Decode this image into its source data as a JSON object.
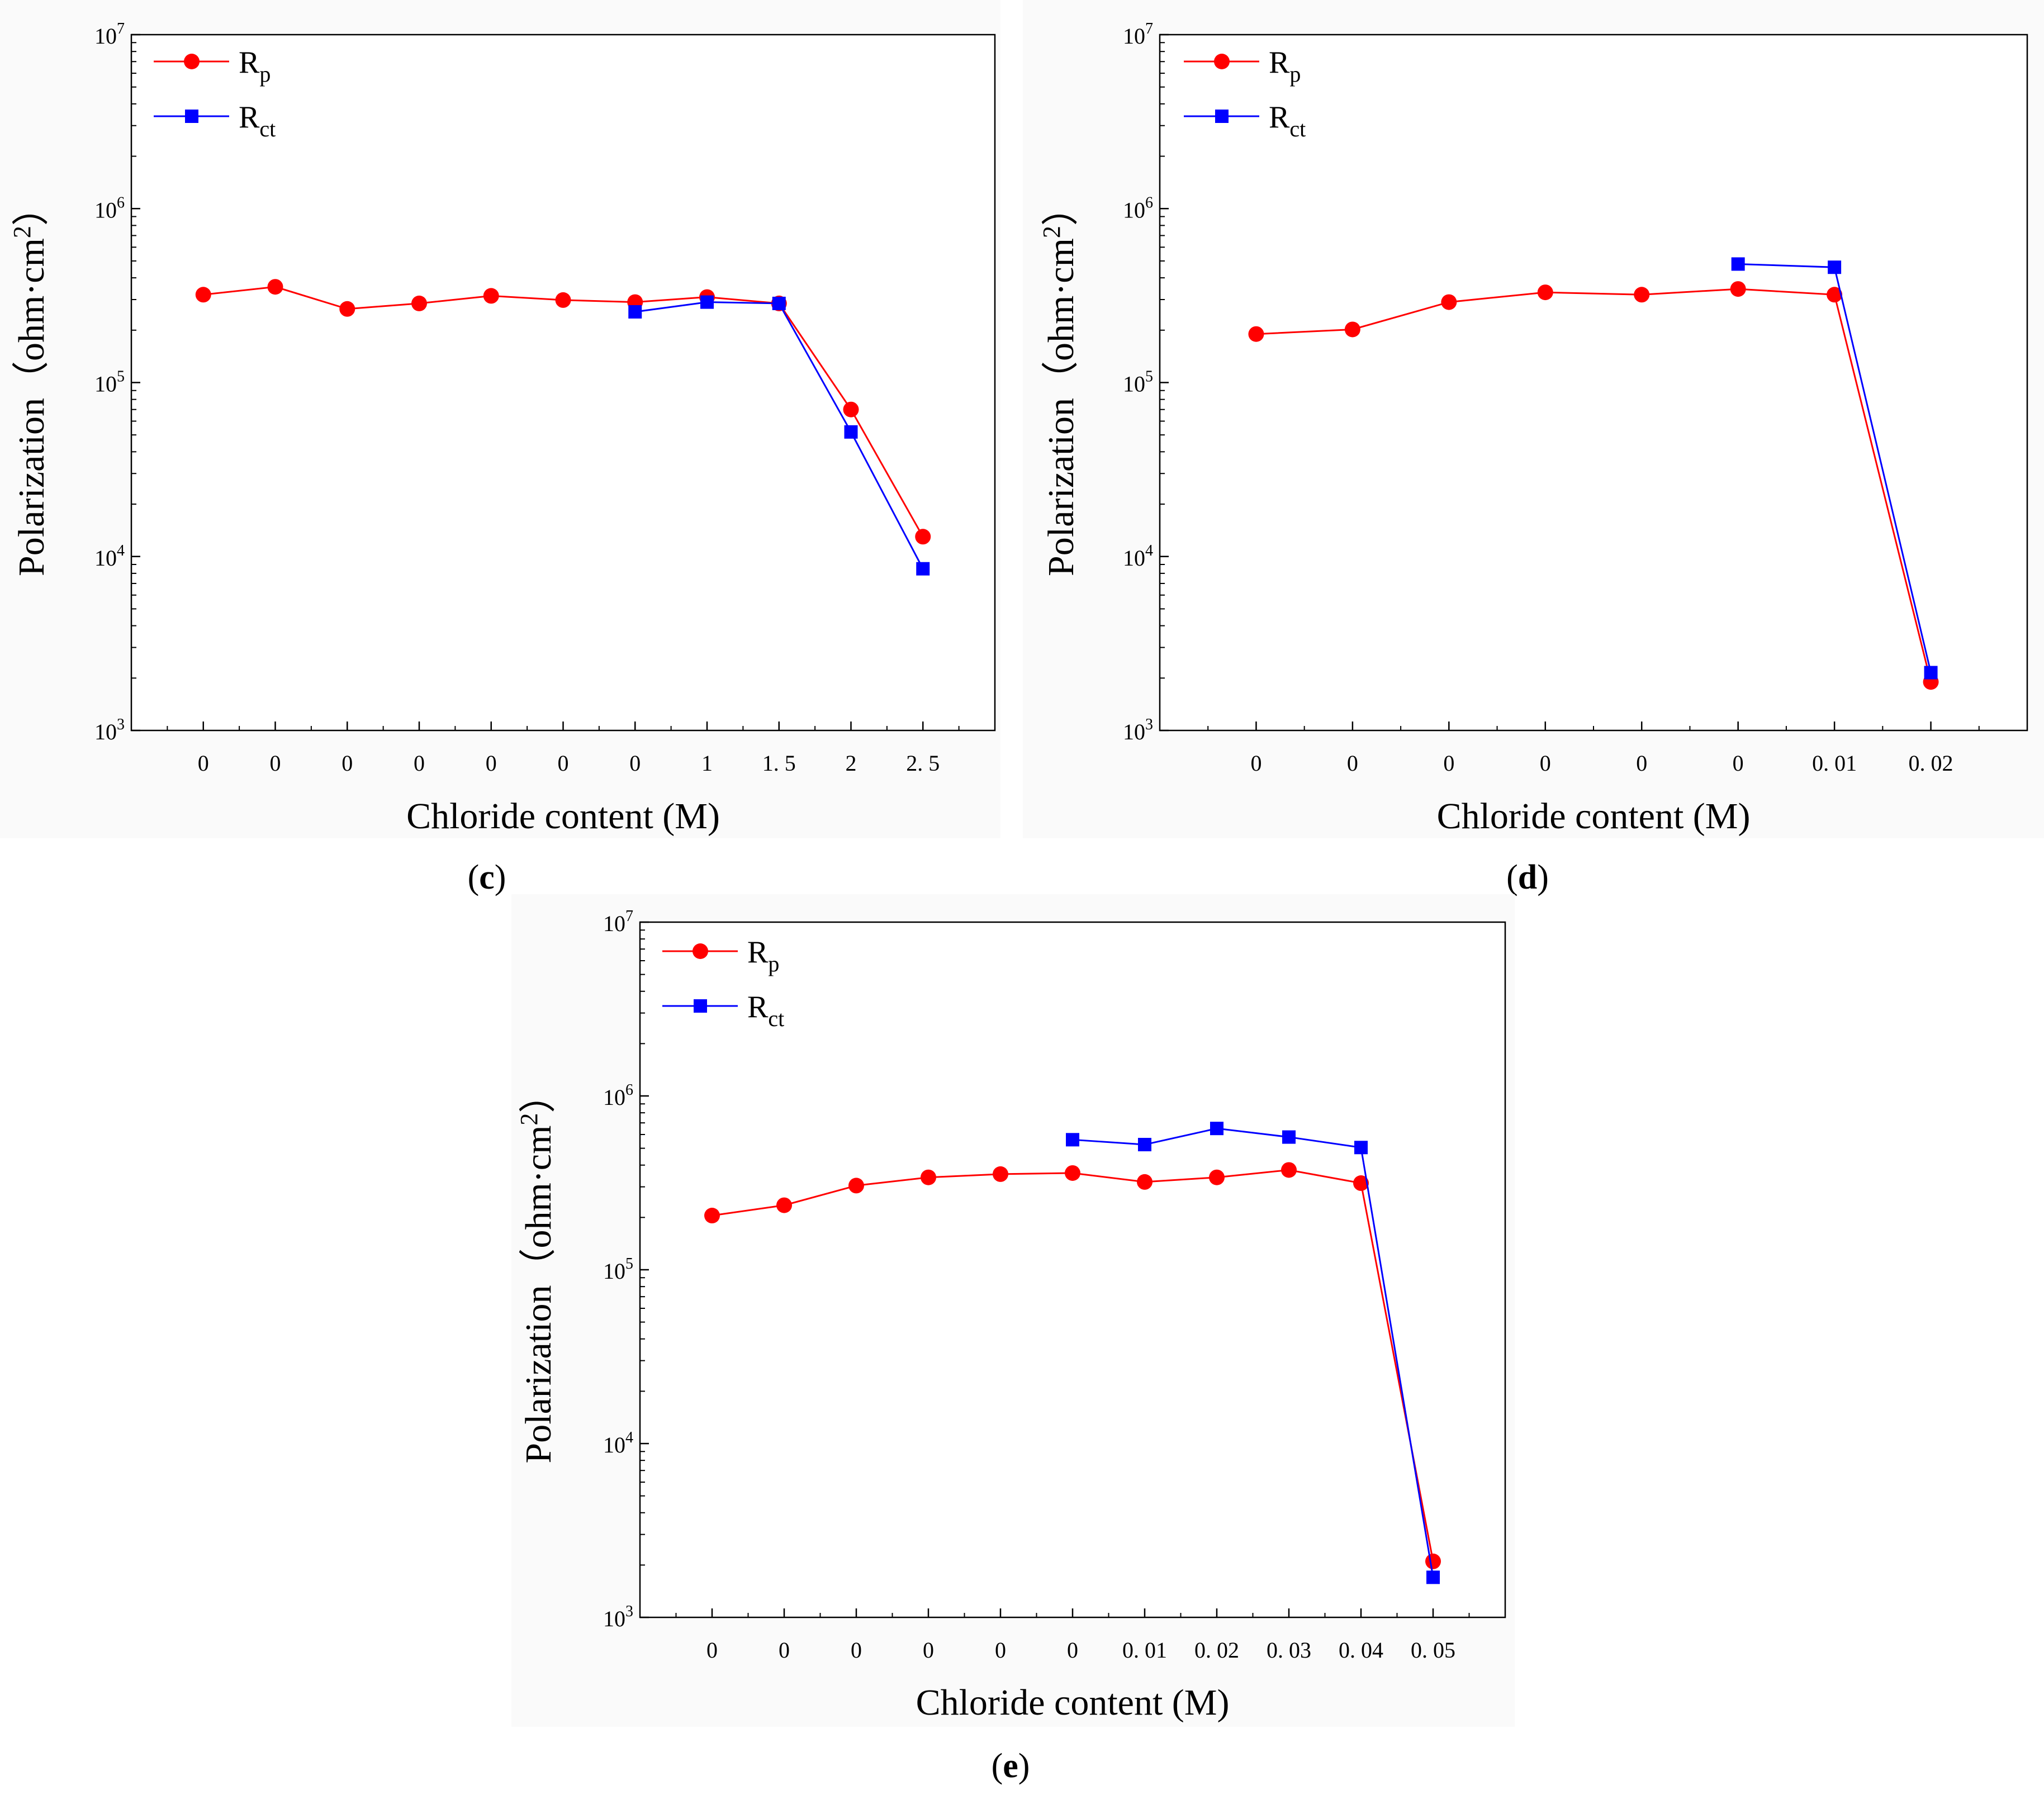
{
  "panels": [
    {
      "id": "c",
      "label": {
        "open": "(",
        "letter": "c",
        "close": ")"
      },
      "xlabel": "Chloride content (M)",
      "ylabel": {
        "main": "Polarization（ohm·cm",
        "sup": "2",
        "end": "）"
      },
      "legend": [
        {
          "base": "R",
          "sub": "p",
          "color": "#ff0000",
          "marker": "circle"
        },
        {
          "base": "R",
          "sub": "ct",
          "color": "#0000ff",
          "marker": "square"
        }
      ]
    },
    {
      "id": "d",
      "label": {
        "open": "(",
        "letter": "d",
        "close": ")"
      },
      "xlabel": "Chloride content (M)",
      "ylabel": {
        "main": "Polarization（ohm·cm",
        "sup": "2",
        "end": "）"
      },
      "legend": [
        {
          "base": "R",
          "sub": "p",
          "color": "#ff0000",
          "marker": "circle"
        },
        {
          "base": "R",
          "sub": "ct",
          "color": "#0000ff",
          "marker": "square"
        }
      ]
    },
    {
      "id": "e",
      "label": {
        "open": "(",
        "letter": "e",
        "close": ")"
      },
      "xlabel": "Chloride content (M)",
      "ylabel": {
        "main": "Polarization（ohm·cm",
        "sup": "2",
        "end": "）"
      },
      "legend": [
        {
          "base": "R",
          "sub": "p",
          "color": "#ff0000",
          "marker": "circle"
        },
        {
          "base": "R",
          "sub": "ct",
          "color": "#0000ff",
          "marker": "square"
        }
      ]
    }
  ],
  "chart_data": [
    {
      "panel": "c",
      "type": "line",
      "yscale": "log",
      "ylim": [
        1000,
        10000000
      ],
      "yticks": [
        {
          "base": "10",
          "exp": "3",
          "value": 1000
        },
        {
          "base": "10",
          "exp": "4",
          "value": 10000
        },
        {
          "base": "10",
          "exp": "5",
          "value": 100000
        },
        {
          "base": "10",
          "exp": "6",
          "value": 1000000
        },
        {
          "base": "10",
          "exp": "7",
          "value": 10000000
        }
      ],
      "categories": [
        "0",
        "0",
        "0",
        "0",
        "0",
        "0",
        "0",
        "1",
        "1. 5",
        "2",
        "2. 5"
      ],
      "xlabel": "Chloride content (M)",
      "ylabel": "Polarization（ohm·cm2）",
      "series": [
        {
          "name": "Rp",
          "color": "#ff0000",
          "marker": "circle",
          "values": [
            320000,
            355000,
            265000,
            285000,
            315000,
            298000,
            290000,
            310000,
            285000,
            70000,
            13000
          ]
        },
        {
          "name": "Rct",
          "color": "#0000ff",
          "marker": "square",
          "values": [
            null,
            null,
            null,
            null,
            null,
            null,
            255000,
            290000,
            285000,
            52000,
            8500
          ]
        }
      ]
    },
    {
      "panel": "d",
      "type": "line",
      "yscale": "log",
      "ylim": [
        1000,
        10000000
      ],
      "yticks": [
        {
          "base": "10",
          "exp": "3",
          "value": 1000
        },
        {
          "base": "10",
          "exp": "4",
          "value": 10000
        },
        {
          "base": "10",
          "exp": "5",
          "value": 100000
        },
        {
          "base": "10",
          "exp": "6",
          "value": 1000000
        },
        {
          "base": "10",
          "exp": "7",
          "value": 10000000
        }
      ],
      "categories": [
        "0",
        "0",
        "0",
        "0",
        "0",
        "0",
        "0. 01",
        "0. 02"
      ],
      "xlabel": "Chloride content (M)",
      "ylabel": "Polarization（ohm·cm2）",
      "series": [
        {
          "name": "Rp",
          "color": "#ff0000",
          "marker": "circle",
          "values": [
            190000,
            202000,
            290000,
            330000,
            320000,
            345000,
            320000,
            1900
          ]
        },
        {
          "name": "Rct",
          "color": "#0000ff",
          "marker": "square",
          "values": [
            null,
            null,
            null,
            null,
            null,
            480000,
            460000,
            2150
          ]
        }
      ]
    },
    {
      "panel": "e",
      "type": "line",
      "yscale": "log",
      "ylim": [
        1000,
        10000000
      ],
      "yticks": [
        {
          "base": "10",
          "exp": "3",
          "value": 1000
        },
        {
          "base": "10",
          "exp": "4",
          "value": 10000
        },
        {
          "base": "10",
          "exp": "5",
          "value": 100000
        },
        {
          "base": "10",
          "exp": "6",
          "value": 1000000
        },
        {
          "base": "10",
          "exp": "7",
          "value": 10000000
        }
      ],
      "categories": [
        "0",
        "0",
        "0",
        "0",
        "0",
        "0",
        "0. 01",
        "0. 02",
        "0. 03",
        "0. 04",
        "0. 05"
      ],
      "xlabel": "Chloride content (M)",
      "ylabel": "Polarization（ohm·cm2）",
      "series": [
        {
          "name": "Rp",
          "color": "#ff0000",
          "marker": "circle",
          "values": [
            205000,
            235000,
            305000,
            340000,
            355000,
            360000,
            320000,
            340000,
            375000,
            315000,
            2100
          ]
        },
        {
          "name": "Rct",
          "color": "#0000ff",
          "marker": "square",
          "values": [
            null,
            null,
            null,
            null,
            null,
            560000,
            525000,
            650000,
            580000,
            505000,
            1700
          ]
        }
      ]
    }
  ]
}
